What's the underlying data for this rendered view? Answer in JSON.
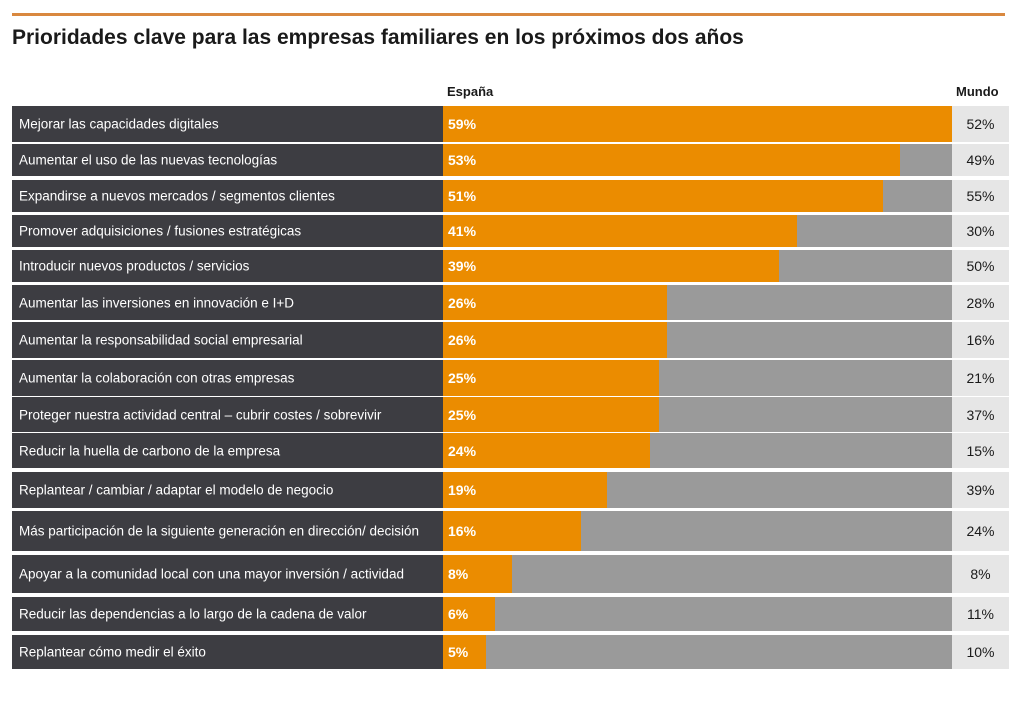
{
  "header": {
    "title": "Prioridades clave para las empresas familiares en los próximos dos años",
    "col_spain": "España",
    "col_world": "Mundo"
  },
  "colors": {
    "accent": "#eb8c00",
    "label_bg": "#3d3d42",
    "track": "#9a9a9a",
    "world_bg": "#e6e6e6",
    "rule": "#d9883f"
  },
  "chart_data": {
    "type": "bar",
    "title": "Prioridades clave para las empresas familiares en los próximos dos años",
    "orientation": "horizontal",
    "xlim": [
      0,
      59
    ],
    "categories": [
      "Mejorar las capacidades digitales",
      "Aumentar el uso de las nuevas tecnologías",
      "Expandirse a nuevos mercados / segmentos clientes",
      "Promover adquisiciones / fusiones estratégicas",
      "Introducir nuevos productos / servicios",
      "Aumentar las inversiones en innovación e I+D",
      "Aumentar la responsabilidad social empresarial",
      "Aumentar la colaboración con otras empresas",
      "Proteger nuestra actividad central – cubrir costes / sobrevivir",
      "Reducir la huella de carbono de la empresa",
      "Replantear / cambiar / adaptar el modelo de negocio",
      "Más participación de la siguiente generación en dirección/ decisión",
      "Apoyar a la comunidad local con una mayor inversión / actividad",
      "Reducir las dependencias a lo largo de la cadena de valor",
      "Replantear cómo medir el éxito"
    ],
    "series": [
      {
        "name": "España",
        "values": [
          59,
          53,
          51,
          41,
          39,
          26,
          26,
          25,
          25,
          24,
          19,
          16,
          8,
          6,
          5
        ],
        "labels": [
          "59%",
          "53%",
          "51%",
          "41%",
          "39%",
          "26%",
          "26%",
          "25%",
          "25%",
          "24%",
          "19%",
          "16%",
          "8%",
          "6%",
          "5%"
        ]
      },
      {
        "name": "Mundo",
        "values": [
          52,
          49,
          55,
          30,
          50,
          28,
          16,
          21,
          37,
          15,
          39,
          24,
          8,
          11,
          10
        ],
        "labels": [
          "52%",
          "49%",
          "55%",
          "30%",
          "50%",
          "28%",
          "16%",
          "21%",
          "37%",
          "15%",
          "39%",
          "24%",
          "8%",
          "11%",
          "10%"
        ]
      }
    ]
  }
}
